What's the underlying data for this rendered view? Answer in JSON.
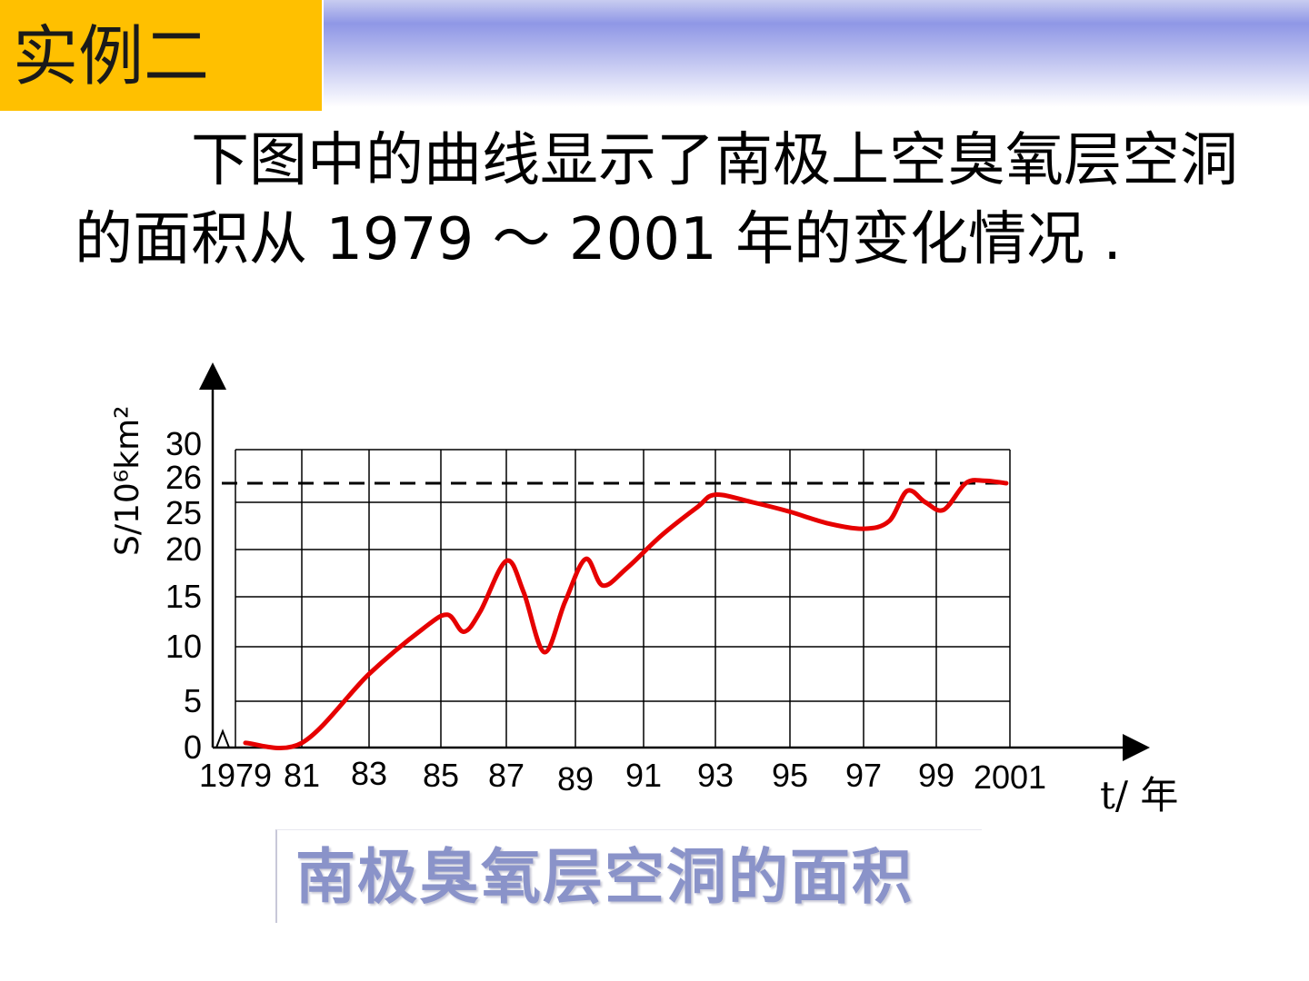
{
  "slide": {
    "title": "实例二",
    "body_text": "下图中的曲线显示了南极上空臭氧层空洞的面积从 1979 ～ 2001 年的变化情况 .",
    "caption": "南极臭氧层空洞的面积",
    "colors": {
      "title_bg": "#ffc000",
      "curve": "#e60000",
      "caption": "#8a93c9"
    }
  },
  "chart_data": {
    "type": "line",
    "title": "",
    "xlabel": "t/ 年",
    "ylabel": "S/10⁶km²",
    "x_tick_labels": [
      "1979",
      "81",
      "83",
      "85",
      "87",
      "89",
      "91",
      "93",
      "95",
      "97",
      "99",
      "2001"
    ],
    "y_tick_labels": [
      "0",
      "5",
      "10",
      "15",
      "20",
      "25",
      "26",
      "30"
    ],
    "reference_line": {
      "y": 26,
      "style": "dashed"
    },
    "series": [
      {
        "color": "#e60000",
        "x": [
          1979.3,
          1981,
          1983,
          1984.5,
          1985.2,
          1985.7,
          1986.2,
          1987,
          1987.5,
          1988.1,
          1988.7,
          1989.3,
          1989.8,
          1990.5,
          1991.5,
          1992.5,
          1993,
          1994,
          1995,
          1996,
          1997,
          1997.7,
          1998.2,
          1998.7,
          1999.2,
          1999.8,
          2000.3,
          2000.9
        ],
        "y": [
          0.5,
          0.5,
          7.5,
          11.8,
          13.2,
          11.5,
          13.5,
          18.8,
          15.5,
          9.5,
          14.5,
          19,
          16.2,
          18,
          21.5,
          24.5,
          25.4,
          25,
          24,
          22.8,
          22.2,
          23,
          25.6,
          25,
          24.2,
          26,
          26.3,
          26
        ]
      }
    ]
  }
}
